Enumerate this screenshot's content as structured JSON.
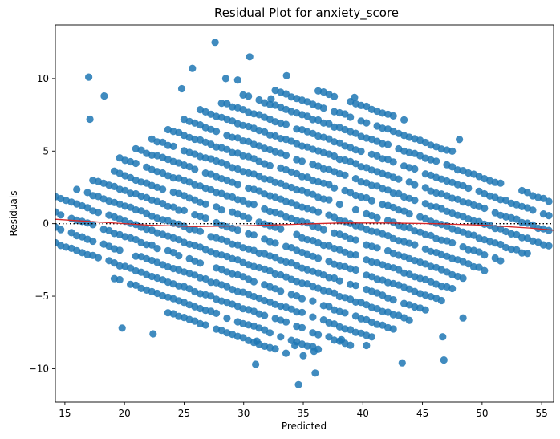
{
  "chart_data": {
    "type": "scatter",
    "title": "Residual Plot for anxiety_score",
    "xlabel": "Predicted",
    "ylabel": "Residuals",
    "xlim": [
      14.2,
      56.0
    ],
    "ylim": [
      -12.3,
      13.7
    ],
    "xticks": [
      15,
      20,
      25,
      30,
      35,
      40,
      45,
      50,
      55
    ],
    "yticks": [
      -10,
      -5,
      0,
      5,
      10
    ],
    "xtick_labels": [
      "15",
      "20",
      "25",
      "30",
      "35",
      "40",
      "45",
      "50",
      "55"
    ],
    "ytick_labels": [
      "−10",
      "−5",
      "0",
      "5",
      "10"
    ],
    "point_color": "#1f77b4",
    "reference_line": {
      "y": 0,
      "style": "dotted",
      "color": "#000000"
    },
    "lowess": {
      "color": "#d62728",
      "x": [
        14.2,
        18,
        22,
        26,
        30,
        34,
        38,
        42,
        46,
        50,
        54,
        56
      ],
      "y": [
        0.3,
        0.1,
        -0.1,
        -0.2,
        -0.15,
        -0.05,
        0.05,
        0.05,
        0.0,
        -0.1,
        -0.3,
        -0.45
      ]
    },
    "outliers": {
      "x": [
        27.6,
        30.5,
        17.0,
        25.7,
        33.6,
        34.6,
        35.0,
        31.0,
        36.0,
        34.3,
        35.9,
        43.3,
        46.8,
        46.7,
        48.4,
        29.5,
        28.5,
        24.8,
        17.1,
        18.3,
        39.3,
        48.1,
        19.8,
        22.4,
        31.1,
        38.2,
        40.3,
        32.3
      ],
      "y": [
        12.5,
        11.5,
        10.1,
        10.7,
        10.2,
        -11.1,
        -9.1,
        -9.7,
        -10.3,
        -8.4,
        -8.8,
        -9.6,
        -9.4,
        -7.8,
        -6.5,
        9.9,
        10.0,
        9.3,
        7.2,
        8.8,
        8.7,
        5.8,
        -7.2,
        -7.6,
        -8.1,
        -8.0,
        -8.4,
        8.6
      ]
    },
    "band": {
      "slope": -0.285,
      "stripe_spacing": 1.05,
      "upper_intercept_at_x15": 1.6,
      "lower_intercept_at_x15": -1.4,
      "center_spread_residual": 7.0
    }
  }
}
